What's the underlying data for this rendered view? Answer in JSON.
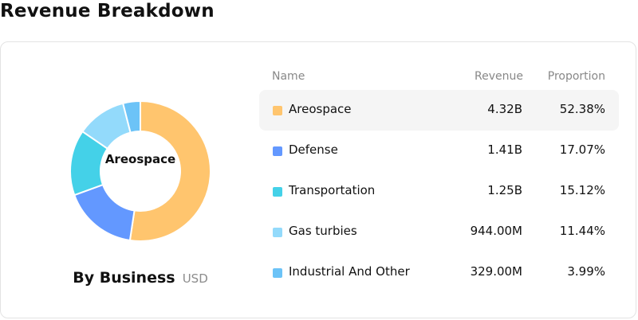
{
  "page": {
    "title": "Revenue Breakdown"
  },
  "summary": {
    "center_label": "Areospace",
    "title": "By Business",
    "unit": "USD"
  },
  "table": {
    "headers": {
      "name": "Name",
      "revenue": "Revenue",
      "proportion": "Proportion"
    },
    "rows": [
      {
        "name": "Areospace",
        "revenue": "4.32B",
        "proportion": "52.38%",
        "color": "#FFC56E",
        "highlighted": true
      },
      {
        "name": "Defense",
        "revenue": "1.41B",
        "proportion": "17.07%",
        "color": "#6398FF",
        "highlighted": false
      },
      {
        "name": "Transportation",
        "revenue": "1.25B",
        "proportion": "15.12%",
        "color": "#44D1E8",
        "highlighted": false
      },
      {
        "name": "Gas turbies",
        "revenue": "944.00M",
        "proportion": "11.44%",
        "color": "#93DAFB",
        "highlighted": false
      },
      {
        "name": "Industrial And Other",
        "revenue": "329.00M",
        "proportion": "3.99%",
        "color": "#6CC3F7",
        "highlighted": false
      }
    ]
  },
  "chart_data": {
    "type": "pie",
    "donut": true,
    "categories": [
      "Areospace",
      "Defense",
      "Transportation",
      "Gas turbies",
      "Industrial And Other"
    ],
    "values": [
      52.38,
      17.07,
      15.12,
      11.44,
      3.99
    ],
    "revenue": [
      "4.32B",
      "1.41B",
      "1.25B",
      "944.00M",
      "329.00M"
    ],
    "colors": [
      "#FFC56E",
      "#6398FF",
      "#44D1E8",
      "#93DAFB",
      "#6CC3F7"
    ],
    "title": "By Business",
    "unit": "USD",
    "center_label": "Areospace"
  }
}
